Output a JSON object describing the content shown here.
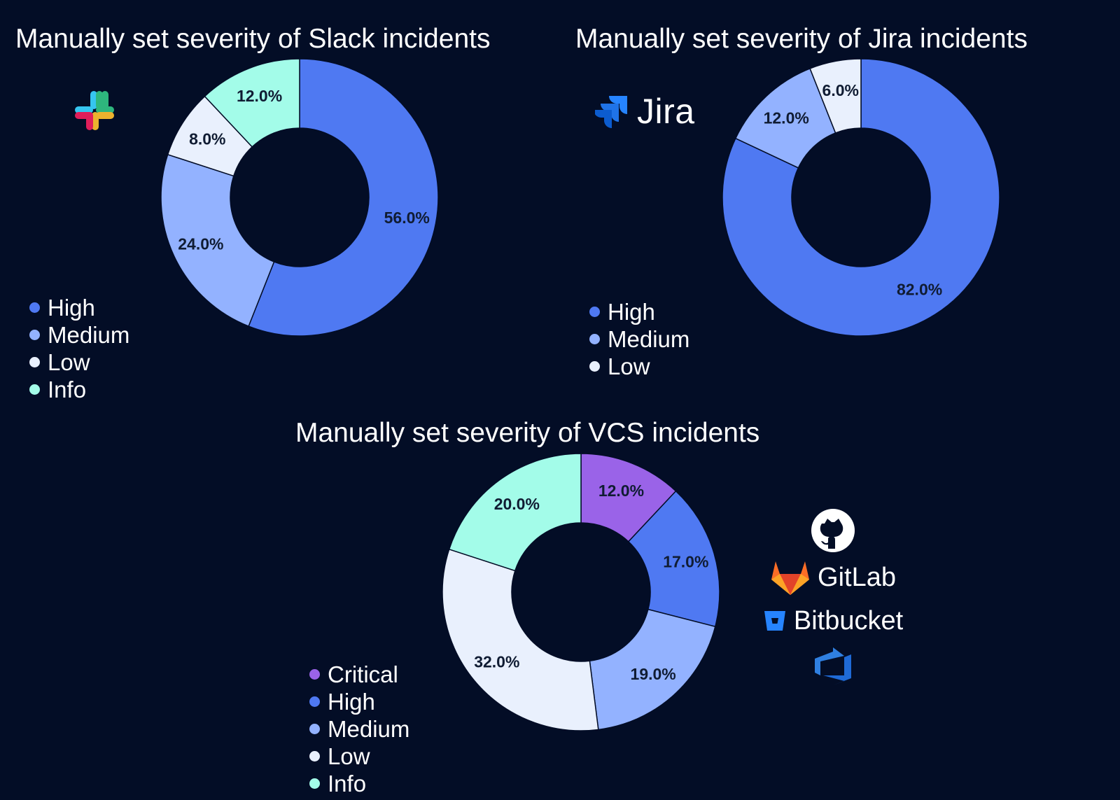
{
  "colors": {
    "background": "#030d26",
    "Critical": "#9a63e8",
    "High": "#4f79f2",
    "Medium": "#93b2ff",
    "Low": "#e9f0fd",
    "Info": "#a3fce9",
    "label_text": "#101c33"
  },
  "chart_data": [
    {
      "type": "pie",
      "title": "Manually set severity of Slack incidents",
      "categories": [
        "High",
        "Medium",
        "Low",
        "Info"
      ],
      "values": [
        56.0,
        24.0,
        8.0,
        12.0
      ],
      "labels": [
        "56.0%",
        "24.0%",
        "8.0%",
        "12.0%"
      ],
      "legend": "bottom-left",
      "logo": "slack-logo"
    },
    {
      "type": "pie",
      "title": "Manually set severity of Jira incidents",
      "categories": [
        "High",
        "Medium",
        "Low"
      ],
      "values": [
        82.0,
        12.0,
        6.0
      ],
      "labels": [
        "82.0%",
        "12.0%",
        "6.0%"
      ],
      "legend": "bottom-left",
      "logo": "jira-logo"
    },
    {
      "type": "pie",
      "title": "Manually set severity of VCS incidents",
      "categories": [
        "Critical",
        "High",
        "Medium",
        "Low",
        "Info"
      ],
      "values": [
        12.0,
        17.0,
        19.0,
        32.0,
        20.0
      ],
      "labels": [
        "12.0%",
        "17.0%",
        "19.0%",
        "32.0%",
        "20.0%"
      ],
      "legend": "bottom-left",
      "logo": "vcs-logos"
    }
  ],
  "logos": {
    "jira_text": "Jira",
    "gitlab_text": "GitLab",
    "bitbucket_text": "Bitbucket"
  }
}
